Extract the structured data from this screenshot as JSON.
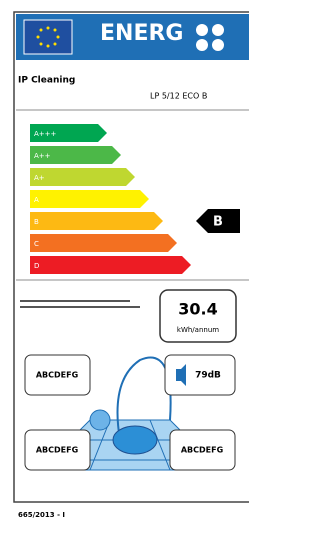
{
  "header": {
    "brand": "ENERG"
  },
  "supplier": "IP Cleaning",
  "model": "LP 5/12 ECO B",
  "classes": [
    "A+++",
    "A++",
    "A+",
    "A",
    "B",
    "C",
    "D"
  ],
  "rating": "B",
  "energy": {
    "value": "30.4",
    "unit": "kWh/annum"
  },
  "carpet_class": "ABCDEFG",
  "noise": "79dB",
  "hard_floor_class": "ABCDEFG",
  "emission_class": "ABCDEFG",
  "regulation": "665/2013 - I"
}
